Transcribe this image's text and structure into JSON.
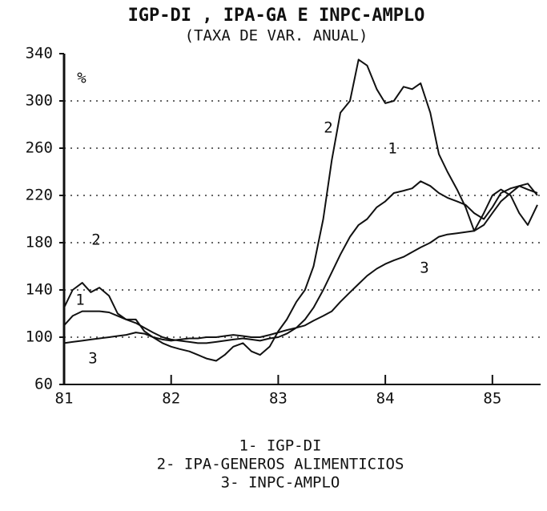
{
  "chart_data": {
    "type": "line",
    "title": "IGP-DI , IPA-GA E INPC-AMPLO",
    "subtitle": "(TAXA DE VAR. ANUAL)",
    "y_label": "%",
    "x": [
      81,
      81.08,
      81.17,
      81.25,
      81.33,
      81.42,
      81.5,
      81.58,
      81.67,
      81.75,
      81.83,
      81.92,
      82,
      82.08,
      82.17,
      82.25,
      82.33,
      82.42,
      82.5,
      82.58,
      82.67,
      82.75,
      82.83,
      82.92,
      83,
      83.08,
      83.17,
      83.25,
      83.33,
      83.42,
      83.5,
      83.58,
      83.67,
      83.75,
      83.83,
      83.92,
      84,
      84.08,
      84.17,
      84.25,
      84.33,
      84.42,
      84.5,
      84.58,
      84.67,
      84.75,
      84.83,
      84.92,
      85,
      85.08,
      85.17,
      85.25,
      85.33,
      85.42
    ],
    "series": [
      {
        "name": "1- IGP-DI",
        "color": "#111111",
        "values": [
          110,
          118,
          122,
          122,
          122,
          121,
          118,
          115,
          112,
          108,
          104,
          100,
          98,
          97,
          96,
          95,
          95,
          96,
          97,
          98,
          99,
          98,
          97,
          99,
          100,
          103,
          108,
          115,
          125,
          140,
          155,
          170,
          185,
          195,
          200,
          210,
          215,
          222,
          224,
          226,
          232,
          228,
          222,
          218,
          215,
          212,
          205,
          200,
          210,
          222,
          226,
          228,
          225,
          222
        ]
      },
      {
        "name": "2- IPA-GENEROS ALIMENTICIOS",
        "color": "#111111",
        "values": [
          125,
          140,
          146,
          138,
          142,
          135,
          120,
          115,
          115,
          105,
          100,
          95,
          92,
          90,
          88,
          85,
          82,
          80,
          85,
          92,
          95,
          88,
          85,
          92,
          105,
          115,
          130,
          140,
          160,
          200,
          250,
          290,
          300,
          335,
          330,
          310,
          298,
          300,
          312,
          310,
          315,
          290,
          255,
          240,
          225,
          210,
          190,
          205,
          220,
          225,
          220,
          205,
          195,
          212
        ]
      },
      {
        "name": "3- INPC-AMPLO",
        "color": "#111111",
        "values": [
          95,
          96,
          97,
          98,
          99,
          100,
          101,
          102,
          104,
          103,
          100,
          98,
          97,
          98,
          99,
          99,
          100,
          100,
          101,
          102,
          101,
          100,
          100,
          102,
          104,
          106,
          108,
          110,
          114,
          118,
          122,
          130,
          138,
          145,
          152,
          158,
          162,
          165,
          168,
          172,
          176,
          180,
          185,
          187,
          188,
          189,
          190,
          195,
          205,
          215,
          222,
          228,
          230,
          220
        ]
      }
    ],
    "annotations": [
      "2",
      "1",
      "3",
      "2",
      "1",
      "3"
    ],
    "xlim": [
      81,
      85.45
    ],
    "xticks": [
      81,
      82,
      83,
      84,
      85
    ],
    "ylim": [
      60,
      340
    ],
    "yticks": [
      60,
      100,
      140,
      180,
      220,
      260,
      300,
      340
    ],
    "grid": true
  }
}
